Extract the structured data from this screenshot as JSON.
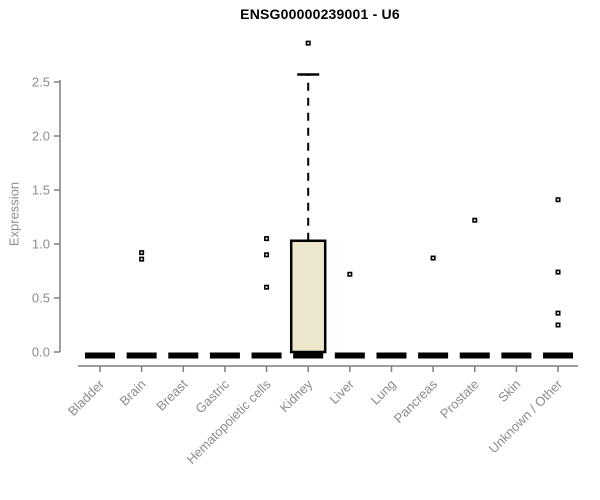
{
  "chart_data": {
    "type": "boxplot",
    "title": "ENSG00000239001 - U6",
    "ylabel": "Expression",
    "xlabel": "",
    "ylim": [
      0,
      2.9
    ],
    "yticks": [
      0.0,
      0.5,
      1.0,
      1.5,
      2.0,
      2.5
    ],
    "grid": false,
    "legend": "none",
    "categories": [
      "Bladder",
      "Brain",
      "Breast",
      "Gastric",
      "Hematopoietic cells",
      "Kidney",
      "Liver",
      "Lung",
      "Pancreas",
      "Prostate",
      "Skin",
      "Unknown / Other"
    ],
    "boxes": [
      {
        "category": "Bladder",
        "q1": 0,
        "median": 0,
        "q3": 0,
        "whisker_low": 0,
        "whisker_high": 0,
        "outliers": []
      },
      {
        "category": "Brain",
        "q1": 0,
        "median": 0,
        "q3": 0,
        "whisker_low": 0,
        "whisker_high": 0,
        "outliers": [
          0.92,
          0.86
        ]
      },
      {
        "category": "Breast",
        "q1": 0,
        "median": 0,
        "q3": 0,
        "whisker_low": 0,
        "whisker_high": 0,
        "outliers": []
      },
      {
        "category": "Gastric",
        "q1": 0,
        "median": 0,
        "q3": 0,
        "whisker_low": 0,
        "whisker_high": 0,
        "outliers": []
      },
      {
        "category": "Hematopoietic cells",
        "q1": 0,
        "median": 0,
        "q3": 0,
        "whisker_low": 0,
        "whisker_high": 0,
        "outliers": [
          1.05,
          0.9,
          0.6
        ]
      },
      {
        "category": "Kidney",
        "q1": 0,
        "median": 0,
        "q3": 1.03,
        "whisker_low": 0,
        "whisker_high": 2.57,
        "outliers": [
          2.86
        ]
      },
      {
        "category": "Liver",
        "q1": 0,
        "median": 0,
        "q3": 0,
        "whisker_low": 0,
        "whisker_high": 0,
        "outliers": [
          0.72
        ]
      },
      {
        "category": "Lung",
        "q1": 0,
        "median": 0,
        "q3": 0,
        "whisker_low": 0,
        "whisker_high": 0,
        "outliers": []
      },
      {
        "category": "Pancreas",
        "q1": 0,
        "median": 0,
        "q3": 0,
        "whisker_low": 0,
        "whisker_high": 0,
        "outliers": [
          0.87
        ]
      },
      {
        "category": "Prostate",
        "q1": 0,
        "median": 0,
        "q3": 0,
        "whisker_low": 0,
        "whisker_high": 0,
        "outliers": [
          1.22
        ]
      },
      {
        "category": "Skin",
        "q1": 0,
        "median": 0,
        "q3": 0,
        "whisker_low": 0,
        "whisker_high": 0,
        "outliers": []
      },
      {
        "category": "Unknown / Other",
        "q1": 0,
        "median": 0,
        "q3": 0,
        "whisker_low": 0,
        "whisker_high": 0,
        "outliers": [
          1.41,
          0.74,
          0.36,
          0.25
        ]
      }
    ],
    "colors": {
      "box_fill": "#ECE7CC",
      "box_border": "#000000",
      "whisker": "#000000",
      "median": "#000000",
      "outlier": "#000000",
      "axis_line": "#7F7F7F",
      "tick_label": "#8C8C8C",
      "title": "#000000",
      "background": "#FFFFFF"
    }
  }
}
